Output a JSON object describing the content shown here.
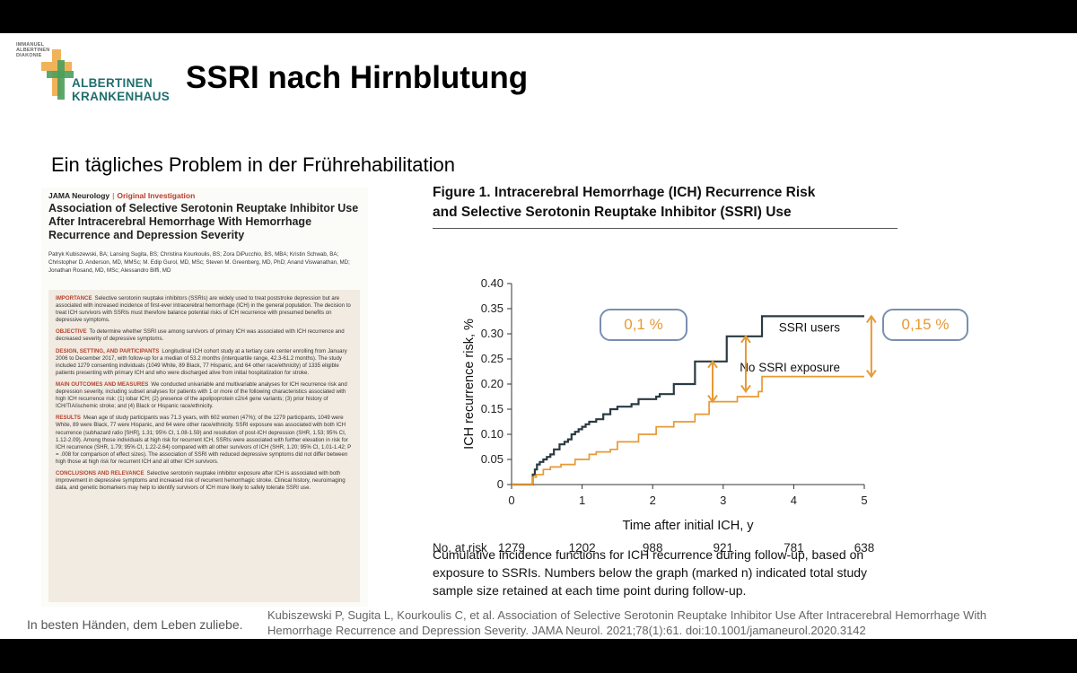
{
  "logo": {
    "small_text": "IMMANUEL\nALBERTINEN\nDIAKONIE",
    "name_line1": "ALBERTINEN",
    "name_line2": "KRANKENHAUS"
  },
  "slide": {
    "title": "SSRI nach Hirnblutung",
    "subtitle": "Ein tägliches Problem in der Frührehabilitation",
    "footer": "In besten Händen, dem Leben zuliebe.",
    "citation": "Kubiszewski P, Sugita L, Kourkoulis C, et al. Association of Selective Serotonin Reuptake Inhibitor Use After Intracerebral Hemorrhage With Hemorrhage Recurrence and Depression Severity. JAMA Neurol. 2021;78(1):61. doi:10.1001/jamaneurol.2020.3142"
  },
  "paper": {
    "journal": "JAMA Neurology",
    "article_type": "Original Investigation",
    "title": "Association of Selective Serotonin Reuptake Inhibitor Use After Intracerebral Hemorrhage With Hemorrhage Recurrence and Depression Severity",
    "authors": "Patryk Kubiszewski, BA; Lansing Sugita, BS; Christina Kourkoulis, BS; Zora DiPucchio, BS, MBA; Kristin Schwab, BA; Christopher D. Anderson, MD, MMSc; M. Edip Gurol, MD, MSc; Steven M. Greenberg, MD, PhD; Anand Viswanathan, MD; Jonathan Rosand, MD, MSc; Alessandro Biffi, MD",
    "abstract": [
      {
        "heading": "IMPORTANCE",
        "text": "Selective serotonin reuptake inhibitors (SSRIs) are widely used to treat poststroke depression but are associated with increased incidence of first-ever intracerebral hemorrhage (ICH) in the general population. The decision to treat ICH survivors with SSRIs must therefore balance potential risks of ICH recurrence with presumed benefits on depressive symptoms."
      },
      {
        "heading": "OBJECTIVE",
        "text": "To determine whether SSRI use among survivors of primary ICH was associated with ICH recurrence and decreased severity of depressive symptoms."
      },
      {
        "heading": "DESIGN, SETTING, AND PARTICIPANTS",
        "text": "Longitudinal ICH cohort study at a tertiary care center enrolling from January 2006 to December 2017, with follow-up for a median of 53.2 months (interquartile range, 42.3-61.2 months). The study included 1279 consenting individuals (1049 White, 89 Black, 77 Hispanic, and 64 other race/ethnicity) of 1335 eligible patients presenting with primary ICH and who were discharged alive from initial hospitalization for stroke."
      },
      {
        "heading": "MAIN OUTCOMES AND MEASURES",
        "text": "We conducted univariable and multivariable analyses for ICH recurrence risk and depression severity, including subset analyses for patients with 1 or more of the following characteristics associated with high ICH recurrence risk: (1) lobar ICH; (2) presence of the apolipoprotein ε2/ε4 gene variants; (3) prior history of ICH/TIA/ischemic stroke; and (4) Black or Hispanic race/ethnicity."
      },
      {
        "heading": "RESULTS",
        "text": "Mean age of study participants was 71.3 years, with 602 women (47%); of the 1279 participants, 1049 were White, 89 were Black, 77 were Hispanic, and 64 were other race/ethnicity. SSRI exposure was associated with both ICH recurrence (subhazard ratio [SHR], 1.31; 95% CI, 1.08-1.59) and resolution of post-ICH depression (SHR, 1.53; 95% CI, 1.12-2.09). Among those individuals at high risk for recurrent ICH, SSRIs were associated with further elevation in risk for ICH recurrence (SHR, 1.79; 95% CI, 1.22-2.64) compared with all other survivors of ICH (SHR, 1.20; 95% CI, 1.01-1.42; P = .008 for comparison of effect sizes). The association of SSRI with reduced depressive symptoms did not differ between high those at high risk for recurrent ICH and all other ICH survivors."
      },
      {
        "heading": "CONCLUSIONS AND RELEVANCE",
        "text": "Selective serotonin reuptake inhibitor exposure after ICH is associated with both improvement in depressive symptoms and increased risk of recurrent hemorrhagic stroke. Clinical history, neuroimaging data, and genetic biomarkers may help to identify survivors of ICH more likely to safely tolerate SSRI use."
      }
    ]
  },
  "figure": {
    "title_line1": "Figure 1. Intracerebral Hemorrhage (ICH) Recurrence Risk",
    "title_line2": "and Selective Serotonin Reuptake Inhibitor (SSRI) Use",
    "caption": "Cumulative incidence functions for ICH recurrence during follow-up, based on exposure to SSRIs. Numbers below the graph (marked n) indicated total study sample size retained at each time point during follow-up.",
    "callout_1": "0,1 %",
    "callout_2": "0,15 %"
  },
  "chart_data": {
    "type": "line",
    "title": "Figure 1. Intracerebral Hemorrhage (ICH) Recurrence Risk and Selective Serotonin Reuptake Inhibitor (SSRI) Use",
    "xlabel": "Time after initial ICH, y",
    "ylabel": "ICH recurrence risk, %",
    "xlim": [
      0,
      5
    ],
    "ylim": [
      0,
      0.4
    ],
    "xticks": [
      "0",
      "1",
      "2",
      "3",
      "4",
      "5"
    ],
    "yticks": [
      "0",
      "0.05",
      "0.10",
      "0.15",
      "0.20",
      "0.25",
      "0.30",
      "0.35",
      "0.40"
    ],
    "colors": {
      "ssri": "#2b3a42",
      "no_ssri": "#e69a33",
      "annotation": "#e69a33"
    },
    "series": [
      {
        "name": "SSRI users",
        "x": [
          0,
          0.28,
          0.3,
          0.33,
          0.36,
          0.4,
          0.45,
          0.5,
          0.55,
          0.6,
          0.68,
          0.75,
          0.8,
          0.85,
          0.9,
          0.95,
          1.0,
          1.05,
          1.1,
          1.2,
          1.3,
          1.4,
          1.5,
          1.7,
          1.8,
          2.05,
          2.1,
          2.3,
          2.6,
          2.75,
          3.05,
          3.2,
          3.55,
          5.0
        ],
        "values": [
          0,
          0,
          0.02,
          0.03,
          0.04,
          0.045,
          0.05,
          0.055,
          0.06,
          0.07,
          0.08,
          0.085,
          0.09,
          0.1,
          0.105,
          0.11,
          0.115,
          0.12,
          0.125,
          0.13,
          0.14,
          0.15,
          0.155,
          0.16,
          0.17,
          0.175,
          0.18,
          0.2,
          0.245,
          0.245,
          0.295,
          0.295,
          0.335,
          0.335
        ]
      },
      {
        "name": "No SSRI exposure",
        "x": [
          0,
          0.28,
          0.3,
          0.35,
          0.45,
          0.55,
          0.7,
          0.9,
          1.1,
          1.2,
          1.4,
          1.5,
          1.8,
          2.05,
          2.3,
          2.6,
          2.8,
          3.2,
          3.5,
          3.55,
          5.0
        ],
        "values": [
          0,
          0,
          0.015,
          0.02,
          0.03,
          0.035,
          0.04,
          0.05,
          0.06,
          0.065,
          0.07,
          0.085,
          0.1,
          0.115,
          0.125,
          0.14,
          0.165,
          0.175,
          0.185,
          0.215,
          0.215
        ]
      }
    ],
    "legend": [
      "SSRI users",
      "No SSRI exposure"
    ],
    "risk_table": {
      "label": "No. at risk",
      "x": [
        0,
        1,
        2,
        3,
        4,
        5
      ],
      "values": [
        "1279",
        "1202",
        "988",
        "921",
        "781",
        "638"
      ]
    },
    "difference_arrows": [
      {
        "x": 2.85,
        "from": 0.165,
        "to": 0.245
      },
      {
        "x": 3.32,
        "from": 0.185,
        "to": 0.295
      },
      {
        "x": 5.1,
        "from": 0.215,
        "to": 0.335
      }
    ]
  }
}
